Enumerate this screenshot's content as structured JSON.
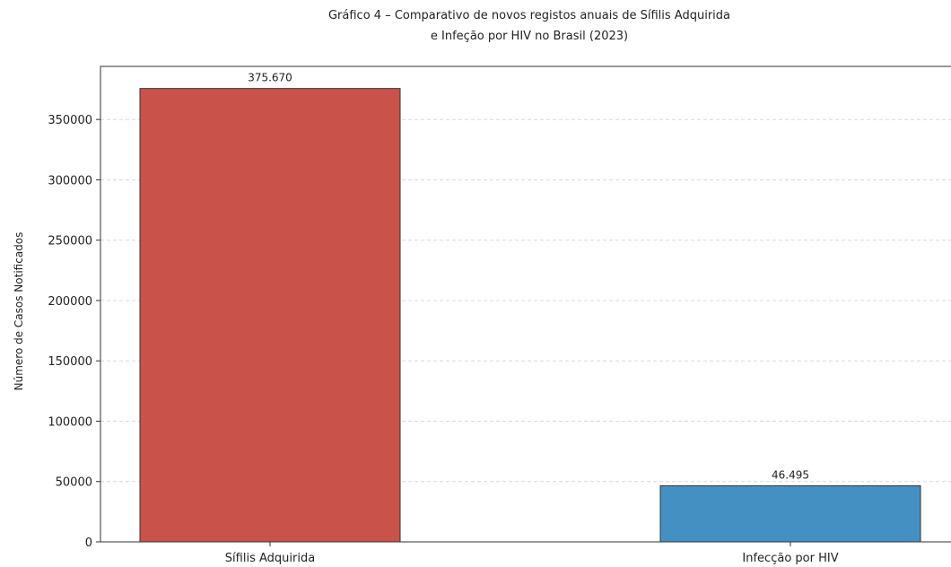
{
  "chart_data": {
    "type": "bar",
    "title_lines": [
      "Gráfico 4 – Comparativo de novos registos anuais de Sífilis Adquirida",
      "e Infeção por HIV no Brasil (2023)"
    ],
    "xlabel": "",
    "ylabel": "Número de Casos Notificados",
    "categories": [
      "Sífilis Adquirida",
      "Infecção por HIV"
    ],
    "values": [
      375670,
      46495
    ],
    "value_labels": [
      "375.670",
      "46.495"
    ],
    "colors": [
      "#c9534a",
      "#4590c2"
    ],
    "ylim": [
      0,
      394000
    ],
    "yticks": [
      0,
      50000,
      100000,
      150000,
      200000,
      250000,
      300000,
      350000
    ],
    "ytick_labels": [
      "0",
      "50000",
      "100000",
      "150000",
      "200000",
      "250000",
      "300000",
      "350000"
    ],
    "grid": "horizontal dashed"
  }
}
